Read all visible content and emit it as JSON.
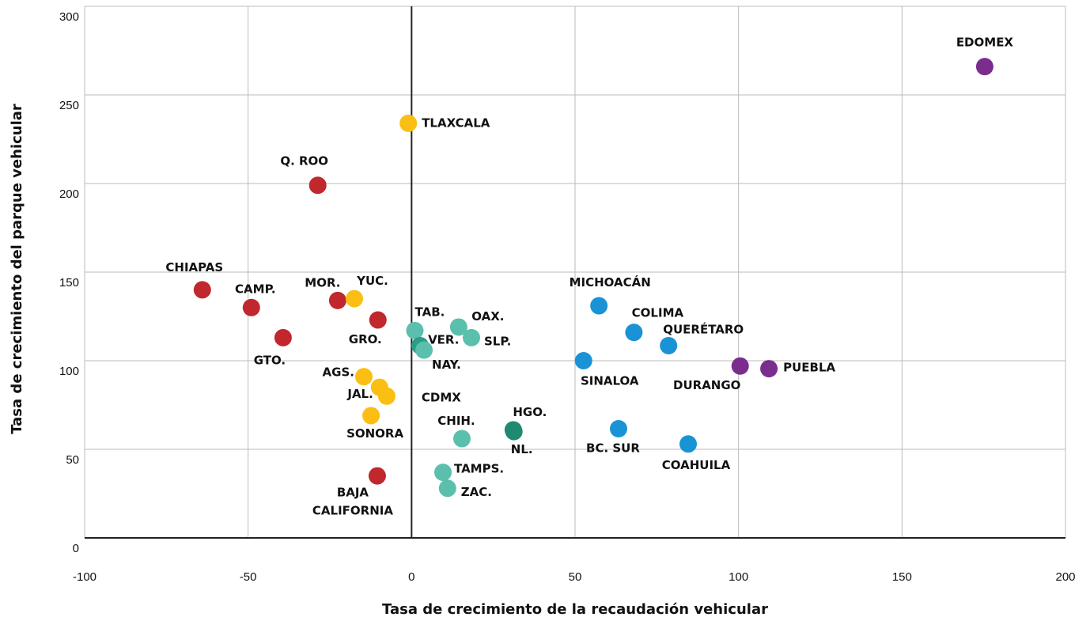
{
  "chart_data": {
    "type": "scatter",
    "xlabel": "Tasa de crecimiento de la recaudación vehicular",
    "ylabel": "Tasa de crecimiento del parque vehicular",
    "xlim": [
      -100,
      200
    ],
    "xticks": [
      -100,
      -50,
      0,
      50,
      100,
      150,
      200
    ],
    "ylim": [
      0,
      300
    ],
    "yticks": [
      0,
      50,
      100,
      150,
      200,
      250,
      300
    ],
    "grid": true,
    "labels": [
      "EDOMEX",
      "TLAXCALA",
      "Q. ROO",
      "CHIAPAS",
      "CAMP.",
      "MOR.",
      "YUC.",
      "GRO.",
      "GTO.",
      "TAB.",
      "OAX.",
      "SLP.",
      "VER.",
      "NAY.",
      "AGS.",
      "JAL.",
      "CDMX",
      "SONORA",
      "CHIH.",
      "HGO.",
      "NL.",
      "TAMPS.",
      "ZAC.",
      "BAJA CALIFORNIA",
      "MICHOACÁN",
      "COLIMA",
      "QUERÉTARO",
      "SINALOA",
      "BC. SUR",
      "COAHUILA",
      "DURANGO",
      "PUEBLA"
    ],
    "x": [
      175.3,
      -1,
      -28.7,
      -64,
      -49,
      -22.6,
      -17.5,
      -10.3,
      -39.3,
      1,
      14.4,
      18.3,
      2.6,
      3.8,
      -14.6,
      -9.8,
      -7.6,
      -12.4,
      15.4,
      31.1,
      31.3,
      9.6,
      11,
      -10.5,
      57.3,
      68,
      78.6,
      52.6,
      63.3,
      84.6,
      100.5,
      109.3
    ],
    "y": [
      266,
      234,
      199,
      140,
      130,
      134,
      135,
      123,
      113,
      117,
      119,
      113,
      108.5,
      106,
      91,
      85,
      80,
      69,
      56,
      61,
      60,
      37,
      28,
      35,
      131,
      116,
      108.5,
      100,
      61.6,
      53,
      97,
      95.5
    ],
    "colors": [
      "#7b2d8e",
      "#fbbf14",
      "#c0282d",
      "#c0282d",
      "#c0282d",
      "#c0282d",
      "#fbbf14",
      "#c0282d",
      "#c0282d",
      "#5bbfad",
      "#5bbfad",
      "#5bbfad",
      "#2a9d85",
      "#5bbfad",
      "#fbbf14",
      "#fbbf14",
      "#fbbf14",
      "#fbbf14",
      "#5bbfad",
      "#1f8a70",
      "#1f8a70",
      "#5bbfad",
      "#5bbfad",
      "#c0282d",
      "#1a93d6",
      "#1a93d6",
      "#1a93d6",
      "#1a93d6",
      "#1a93d6",
      "#1a93d6",
      "#7b2d8e",
      "#7b2d8e"
    ]
  }
}
